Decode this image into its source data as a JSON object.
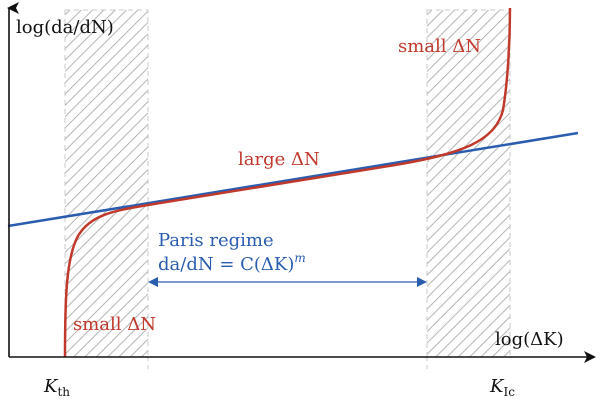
{
  "axes": {
    "y_label": "log(da/dN)",
    "x_label": "log(ΔK)"
  },
  "ticks": {
    "k_th": "K",
    "k_th_sub": "th",
    "k_ic": "K",
    "k_ic_sub": "Ic"
  },
  "annotations": {
    "small_top": "small ΔN",
    "large_mid": "large ΔN",
    "small_bottom": "small ΔN",
    "paris_title": "Paris regime",
    "paris_eq_left": "da/dN = C(ΔK)",
    "paris_eq_sup": "m"
  },
  "colors": {
    "curve": "#c0392b",
    "paris_line": "#2a5db0",
    "axis": "#111111",
    "hatch": "#b5b5b5"
  }
}
